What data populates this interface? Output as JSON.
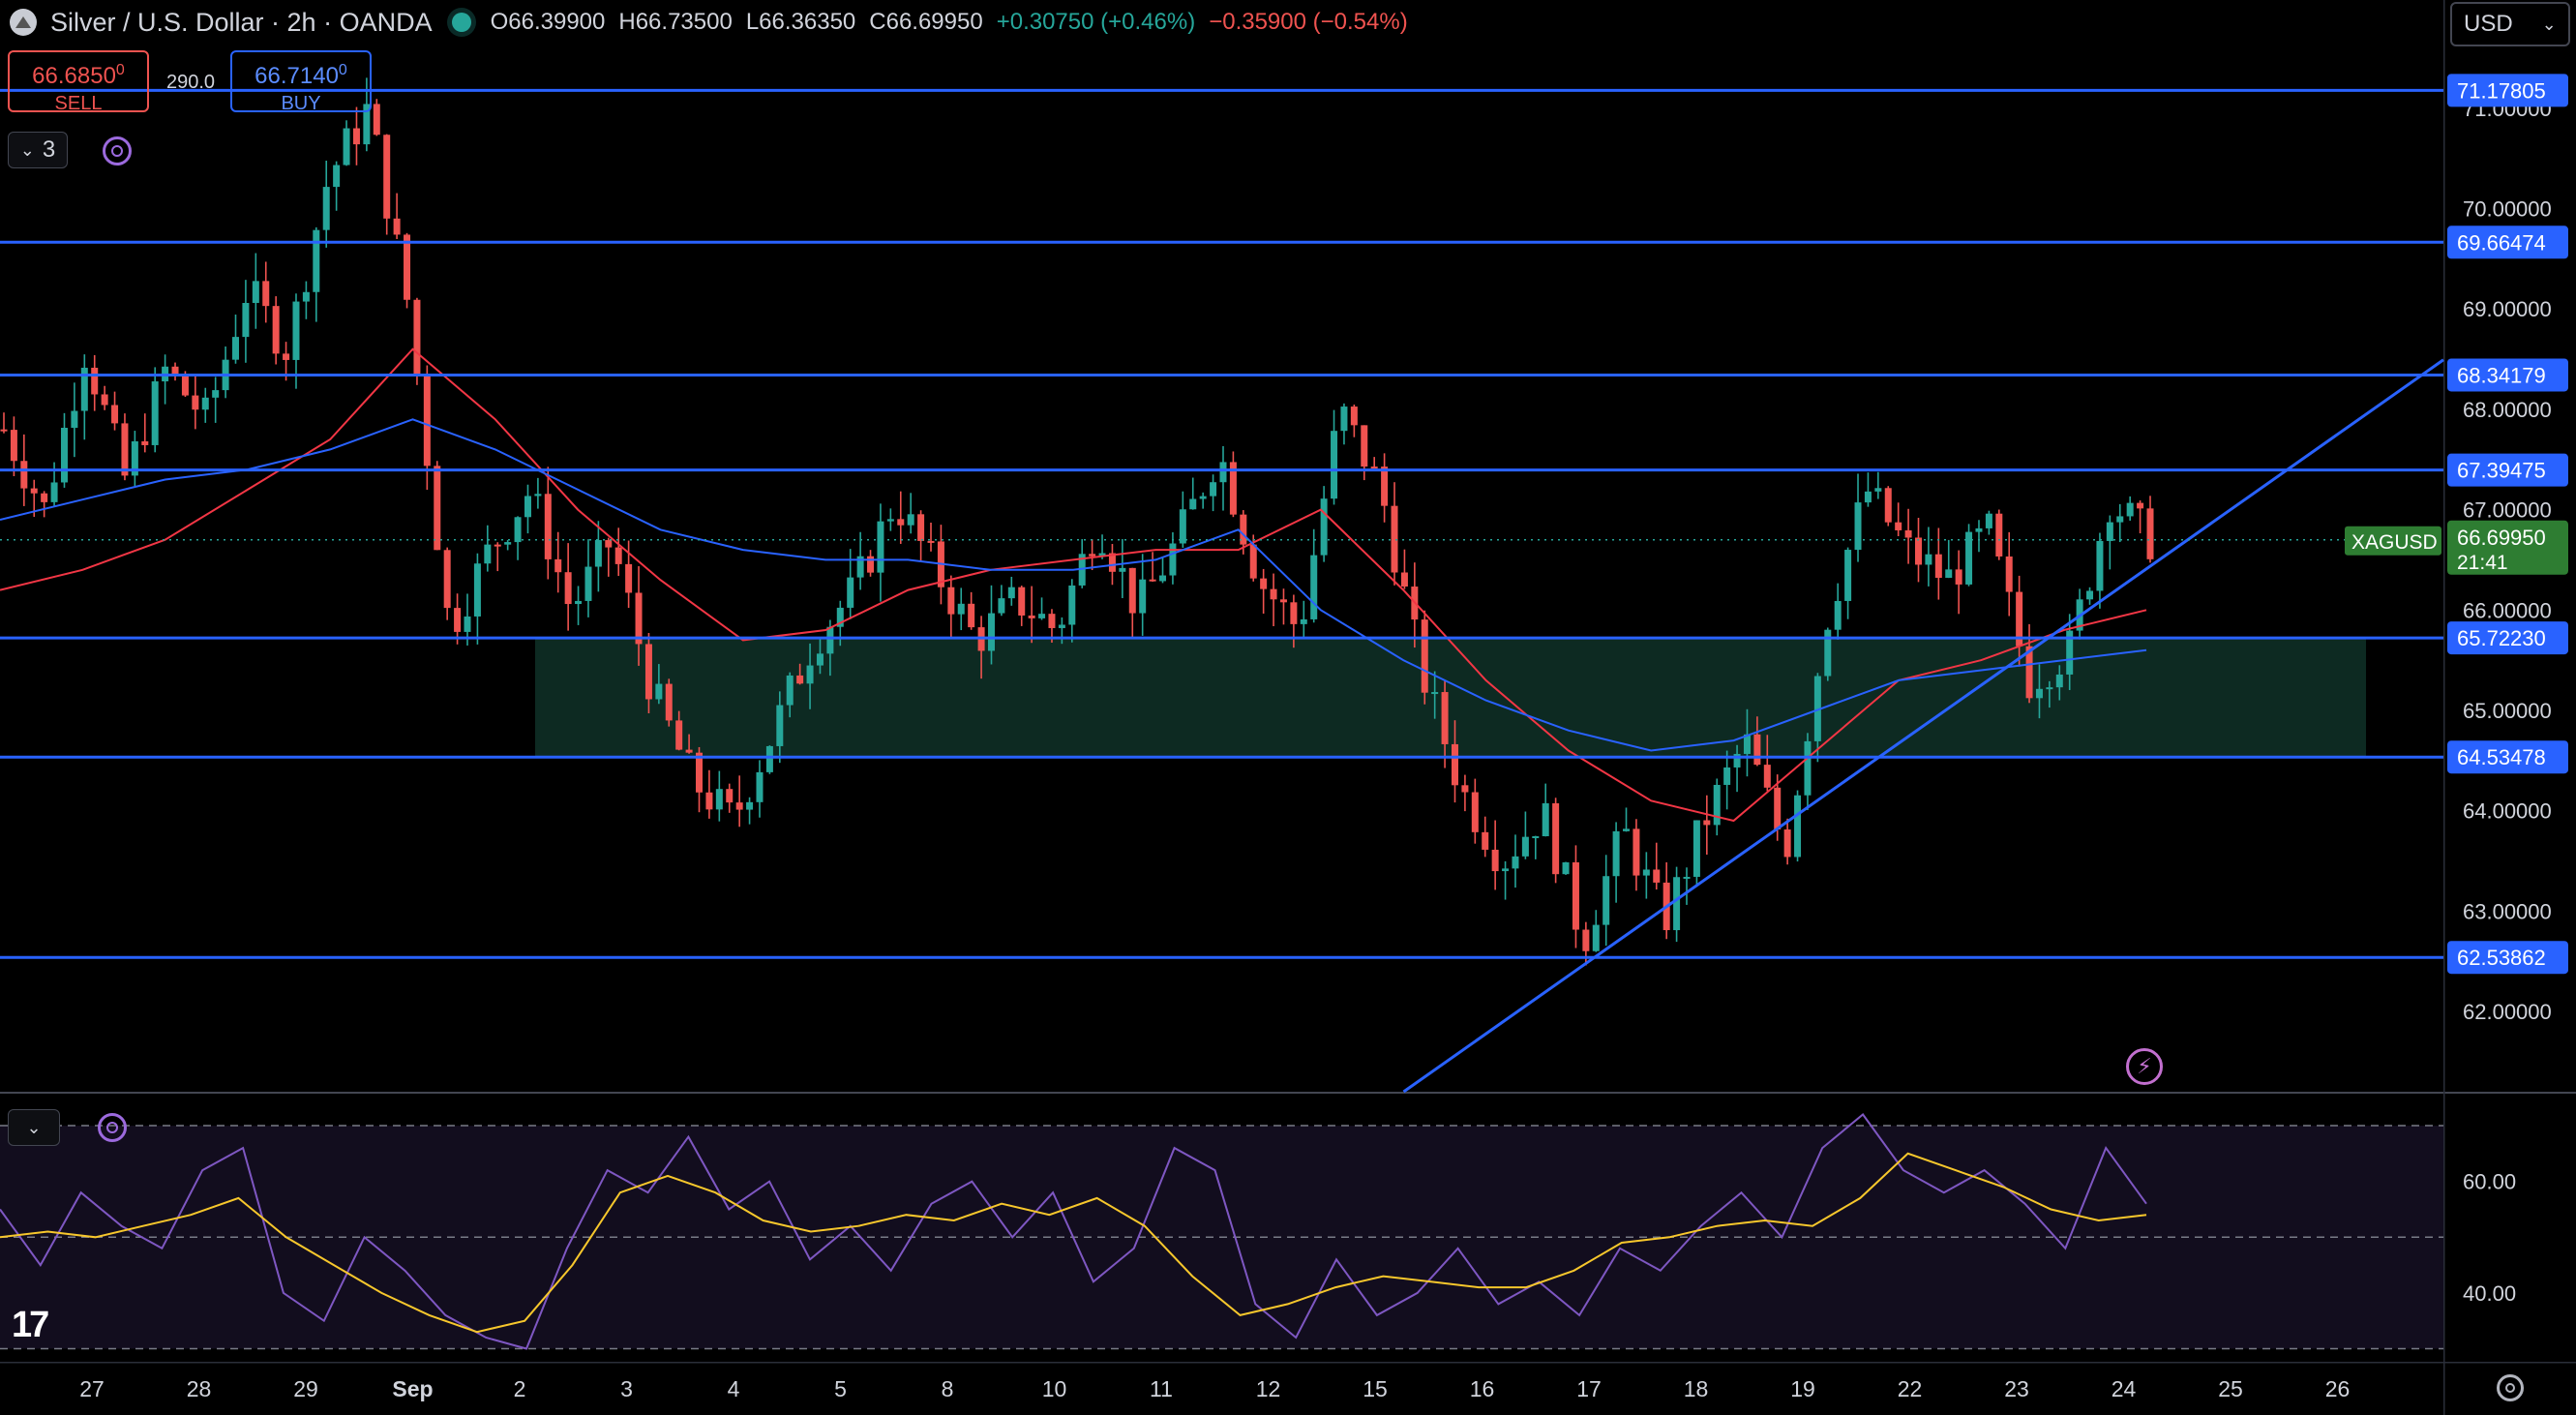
{
  "header": {
    "symbol_title": "Silver / U.S. Dollar · 2h · OANDA",
    "open": "O66.39900",
    "high": "H66.73500",
    "low": "L66.36350",
    "close": "C66.69950",
    "change": "+0.30750 (+0.46%)",
    "change2": "−0.35900 (−0.54%)"
  },
  "trade": {
    "sell_price": "66.6850",
    "sell_price_sup": "0",
    "sell_label": "SELL",
    "spread": "290.0",
    "buy_price": "66.7140",
    "buy_price_sup": "0",
    "buy_label": "BUY"
  },
  "toolbar": {
    "indicator_count": "3"
  },
  "currency_select": "USD",
  "colors": {
    "up": "#26a69a",
    "down": "#ef5350",
    "level_line": "#2962ff",
    "ma_fast": "#f23645",
    "ma_slow": "#2962ff",
    "rsi": "#7e57c2",
    "rsi_ma": "#f7c72c",
    "zone": "#0d2a22"
  },
  "chart_data": [
    {
      "type": "candlestick",
      "symbol": "XAGUSD",
      "interval": "2h",
      "ylim": [
        61.2,
        71.5
      ],
      "y_ticks": [
        "71.00000",
        "70.00000",
        "69.00000",
        "68.00000",
        "67.00000",
        "66.00000",
        "65.00000",
        "64.00000",
        "63.00000",
        "62.00000"
      ],
      "x_ticks": [
        "27",
        "28",
        "29",
        "Sep",
        "2",
        "3",
        "4",
        "5",
        "8",
        "10",
        "11",
        "12",
        "15",
        "16",
        "17",
        "18",
        "19",
        "22",
        "23",
        "24",
        "25",
        "26"
      ],
      "horizontal_levels": [
        "71.17805",
        "69.66474",
        "68.34179",
        "67.39475",
        "65.72230",
        "64.53478",
        "62.53862"
      ],
      "support_zone": [
        64.53478,
        65.7223
      ],
      "last_price": {
        "label": "XAGUSD",
        "value": "66.69950",
        "countdown": "21:41"
      },
      "trendline": {
        "from": {
          "x": "17",
          "y": 62.5
        },
        "to": {
          "x": "25",
          "y": 67.0
        }
      },
      "path": [
        67.8,
        67.0,
        68.6,
        67.3,
        68.4,
        67.9,
        69.2,
        68.6,
        70.3,
        71.0,
        69.0,
        65.8,
        66.6,
        67.2,
        66.0,
        66.7,
        65.2,
        64.3,
        63.9,
        64.8,
        65.7,
        66.2,
        67.1,
        66.4,
        65.7,
        66.1,
        65.8,
        66.9,
        66.0,
        66.7,
        67.6,
        66.3,
        65.8,
        68.0,
        67.2,
        65.4,
        64.2,
        63.5,
        64.0,
        62.7,
        63.8,
        62.9,
        63.9,
        64.7,
        63.6,
        65.9,
        67.2,
        66.6,
        66.3,
        66.8,
        65.3,
        65.6,
        67.1,
        66.7
      ],
      "moving_averages": [
        {
          "values": [
            66.2,
            66.4,
            66.7,
            67.2,
            67.7,
            68.6,
            67.9,
            67.0,
            66.3,
            65.7,
            65.8,
            66.2,
            66.4,
            66.5,
            66.6,
            66.6,
            67.0,
            66.2,
            65.3,
            64.6,
            64.1,
            63.9,
            64.6,
            65.3,
            65.5,
            65.8,
            66.0
          ]
        },
        {
          "values": [
            66.9,
            67.1,
            67.3,
            67.4,
            67.6,
            67.9,
            67.6,
            67.2,
            66.8,
            66.6,
            66.5,
            66.5,
            66.4,
            66.4,
            66.5,
            66.8,
            66.0,
            65.5,
            65.1,
            64.8,
            64.6,
            64.7,
            65.0,
            65.3,
            65.4,
            65.5,
            65.6
          ]
        }
      ]
    },
    {
      "type": "line",
      "indicator": "RSI",
      "ylim": [
        28,
        74
      ],
      "y_ticks": [
        "60.00",
        "40.00"
      ],
      "bands": [
        70,
        50,
        30
      ],
      "series": [
        {
          "values": [
            55,
            45,
            58,
            52,
            48,
            62,
            66,
            40,
            35,
            50,
            44,
            36,
            32,
            30,
            48,
            62,
            58,
            68,
            55,
            60,
            46,
            52,
            44,
            56,
            60,
            50,
            58,
            42,
            48,
            66,
            62,
            38,
            32,
            46,
            36,
            40,
            48,
            38,
            42,
            36,
            48,
            44,
            52,
            58,
            50,
            66,
            72,
            62,
            58,
            62,
            56,
            48,
            66,
            56
          ]
        },
        {
          "values": [
            50,
            51,
            50,
            52,
            54,
            57,
            50,
            45,
            40,
            36,
            33,
            35,
            45,
            58,
            61,
            58,
            53,
            51,
            52,
            54,
            53,
            56,
            54,
            57,
            52,
            43,
            36,
            38,
            41,
            43,
            42,
            41,
            41,
            44,
            49,
            50,
            52,
            53,
            52,
            57,
            65,
            62,
            59,
            55,
            53,
            54
          ]
        }
      ]
    }
  ],
  "x_axis_labels_note": ""
}
